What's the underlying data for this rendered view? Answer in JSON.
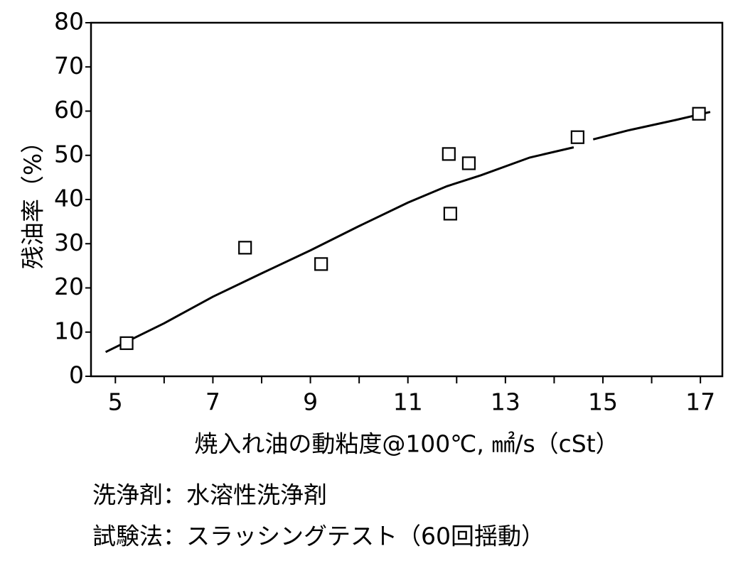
{
  "chart_data": {
    "type": "scatter",
    "x_label": "焼入れ油の動粘度@100℃, ㎟/s（cSt）",
    "y_label": "残油率（%）",
    "notes": [
      "洗浄剤：水溶性洗浄剤",
      "試験法：スラッシングテスト（60回揺動）"
    ],
    "points": {
      "color": "#000000",
      "x": [
        5.23,
        7.66,
        9.22,
        11.84,
        11.87,
        12.25,
        14.48,
        16.97
      ],
      "values": [
        7.5,
        29.1,
        25.4,
        50.3,
        36.8,
        48.2,
        54.1,
        59.4
      ]
    },
    "fit_line": {
      "color": "#000000",
      "x": [
        4.8,
        6,
        7,
        8,
        9,
        10,
        11,
        11.8,
        12.5,
        13.5,
        14.4,
        14.6,
        14.8,
        15.5,
        16.5,
        17.2
      ],
      "values": [
        5.5,
        12,
        18,
        23.3,
        28.5,
        34,
        39.3,
        43,
        45.5,
        49.5,
        51.8,
        null,
        53.6,
        55.6,
        58,
        59.8
      ]
    },
    "xlim": [
      4.5,
      17.45
    ],
    "xticks": [
      5,
      7,
      9,
      11,
      13,
      15,
      17
    ],
    "xminorticks": [
      6,
      8,
      10,
      12,
      14,
      16
    ],
    "ylim": [
      0,
      80
    ],
    "yticks": [
      0,
      10,
      20,
      30,
      40,
      50,
      60,
      70,
      80
    ],
    "grid": false
  }
}
